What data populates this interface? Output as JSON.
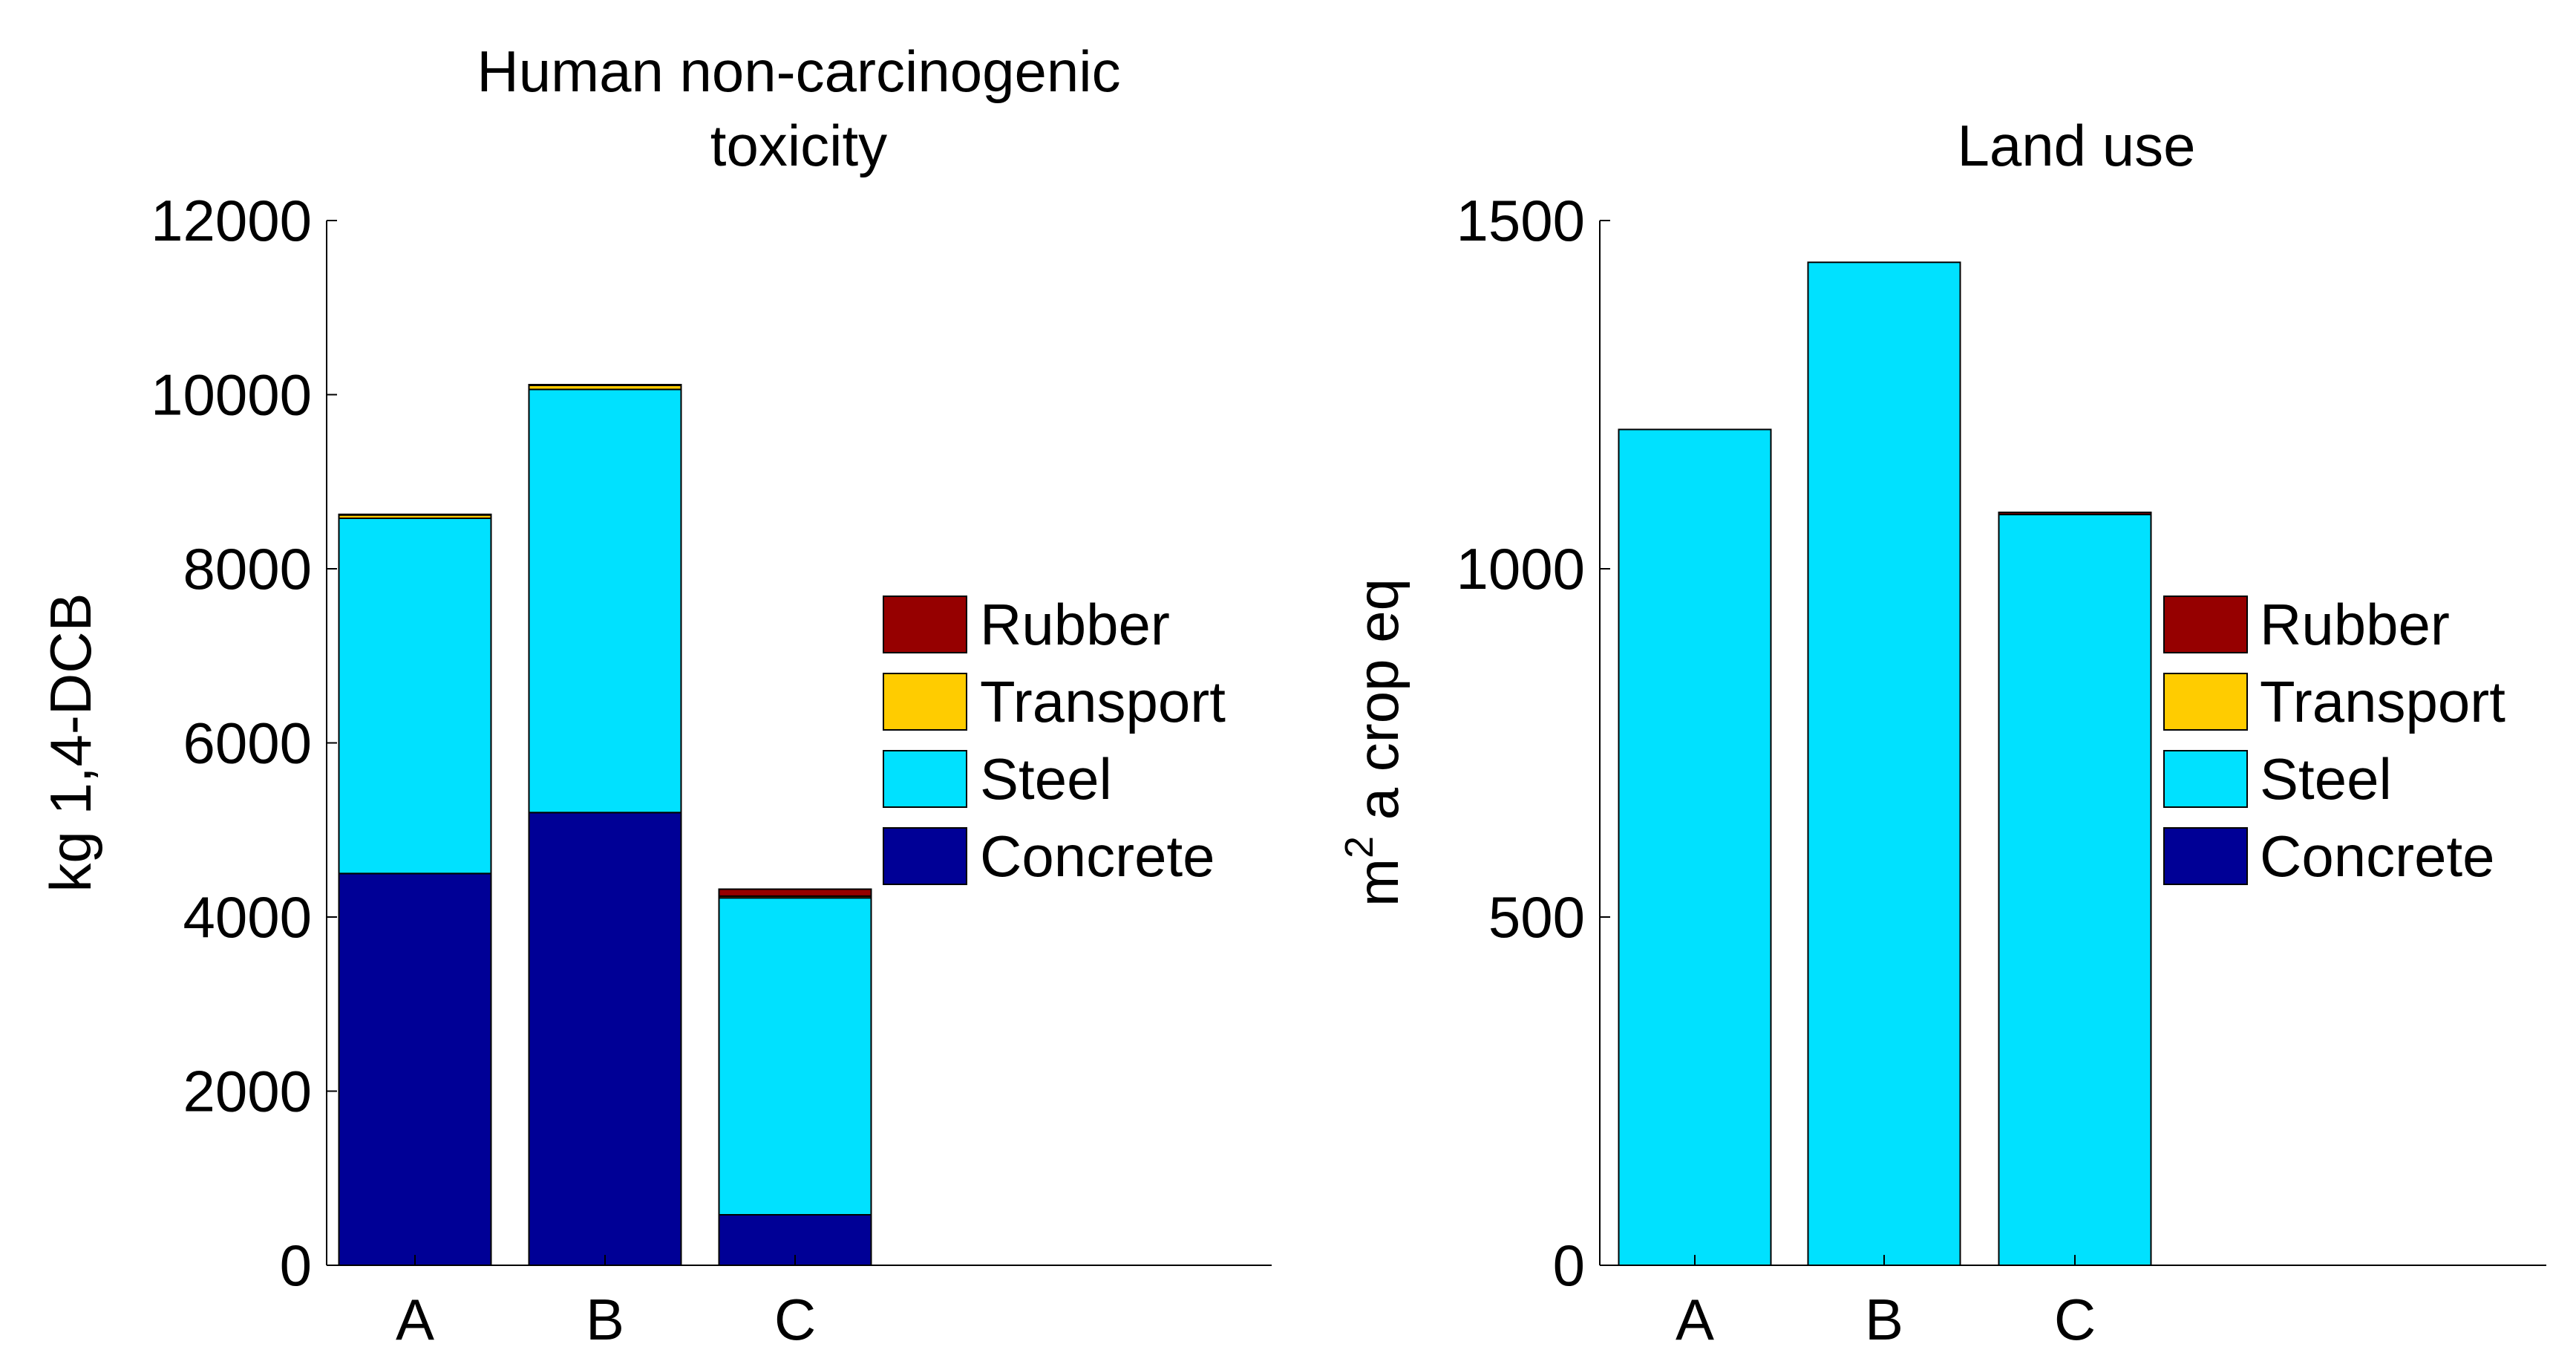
{
  "chart_data": [
    {
      "type": "bar",
      "stacked": true,
      "title_lines": [
        "Human non-carcinogenic",
        "toxicity"
      ],
      "ylabel": "kg 1,4-DCB",
      "xlabel": "",
      "categories": [
        "A",
        "B",
        "C"
      ],
      "ylim": [
        0,
        12000
      ],
      "yticks": [
        0,
        2000,
        4000,
        6000,
        8000,
        10000,
        12000
      ],
      "series": [
        {
          "name": "Concrete",
          "color": "#000096",
          "values": [
            4500,
            5200,
            580
          ]
        },
        {
          "name": "Steel",
          "color": "#00E1FF",
          "values": [
            4080,
            4860,
            3640
          ]
        },
        {
          "name": "Transport",
          "color": "#FFCC00",
          "values": [
            40,
            50,
            20
          ]
        },
        {
          "name": "Rubber",
          "color": "#960000",
          "values": [
            5,
            5,
            80
          ]
        }
      ],
      "legend_order": [
        "Rubber",
        "Transport",
        "Steel",
        "Concrete"
      ],
      "legend_position": "right",
      "grid": false
    },
    {
      "type": "bar",
      "stacked": true,
      "title_lines": [
        "Land use"
      ],
      "ylabel_base": "m",
      "ylabel_sup": "2",
      "ylabel_rest": " a crop eq",
      "xlabel": "",
      "categories": [
        "A",
        "B",
        "C"
      ],
      "ylim": [
        0,
        1500
      ],
      "yticks": [
        0,
        500,
        1000,
        1500
      ],
      "series": [
        {
          "name": "Concrete",
          "color": "#000096",
          "values": [
            0,
            0,
            0
          ]
        },
        {
          "name": "Steel",
          "color": "#00E1FF",
          "values": [
            1200,
            1440,
            1078
          ]
        },
        {
          "name": "Transport",
          "color": "#FFCC00",
          "values": [
            0,
            0,
            0
          ]
        },
        {
          "name": "Rubber",
          "color": "#960000",
          "values": [
            0,
            0,
            3
          ]
        }
      ],
      "legend_order": [
        "Rubber",
        "Transport",
        "Steel",
        "Concrete"
      ],
      "legend_position": "right",
      "grid": false
    }
  ]
}
